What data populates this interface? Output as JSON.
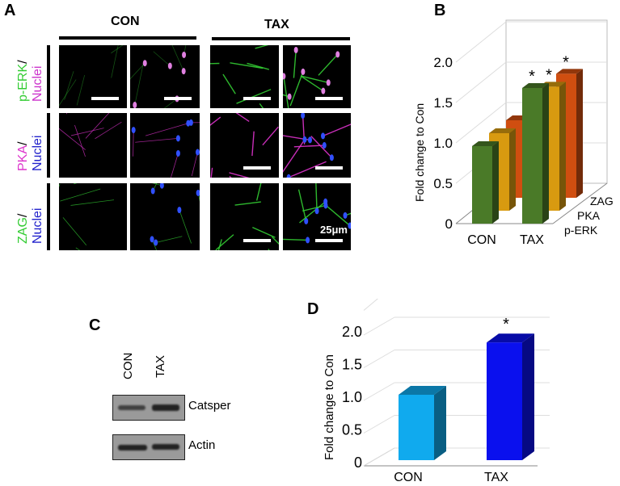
{
  "panels": {
    "a": {
      "label": "A",
      "groups": [
        "CON",
        "TAX"
      ],
      "rows": [
        {
          "marker": "p-ERK",
          "slash": "/",
          "nuclei": "Nuclei",
          "marker_color": "#33cc33",
          "nuclei_color": "#cc33cc"
        },
        {
          "marker": "PKA",
          "slash": "/",
          "nuclei": "Nuclei",
          "marker_color": "#dd33cc",
          "nuclei_color": "#2222cc"
        },
        {
          "marker": "ZAG",
          "slash": "/",
          "nuclei": "Nuclei",
          "marker_color": "#33cc33",
          "nuclei_color": "#2222cc"
        }
      ],
      "scale_bar": "25μm"
    },
    "b": {
      "label": "B"
    },
    "c": {
      "label": "C",
      "lanes": [
        "CON",
        "TAX"
      ],
      "bands": [
        "Catsper",
        "Actin"
      ]
    },
    "d": {
      "label": "D"
    }
  },
  "chart_data": [
    {
      "type": "bar",
      "panel": "B",
      "style": "3d",
      "ylabel": "Fold change to Con",
      "ylim": [
        0,
        2.0
      ],
      "yticks": [
        "0",
        "0.5",
        "1.0",
        "1.5",
        "2.0"
      ],
      "categories": [
        "CON",
        "TAX"
      ],
      "grid": true,
      "series": [
        {
          "name": "p-ERK",
          "values": [
            1.0,
            1.75
          ],
          "color": "#4a7a28",
          "significance": [
            "",
            "*"
          ]
        },
        {
          "name": "PKA",
          "values": [
            1.0,
            1.6
          ],
          "color": "#d89a10",
          "significance": [
            "",
            "*"
          ]
        },
        {
          "name": "ZAG",
          "values": [
            1.0,
            1.6
          ],
          "color": "#d04e10",
          "significance": [
            "",
            "*"
          ]
        }
      ]
    },
    {
      "type": "bar",
      "panel": "D",
      "style": "3d",
      "ylabel": "Fold change to Con",
      "ylim": [
        0,
        2.0
      ],
      "yticks": [
        "0",
        "0.5",
        "1.0",
        "1.5",
        "2.0"
      ],
      "categories": [
        "CON",
        "TAX"
      ],
      "values": [
        1.0,
        1.8
      ],
      "colors": [
        "#10aaee",
        "#0a10ee"
      ],
      "significance": [
        "",
        "*"
      ],
      "grid": true
    }
  ]
}
